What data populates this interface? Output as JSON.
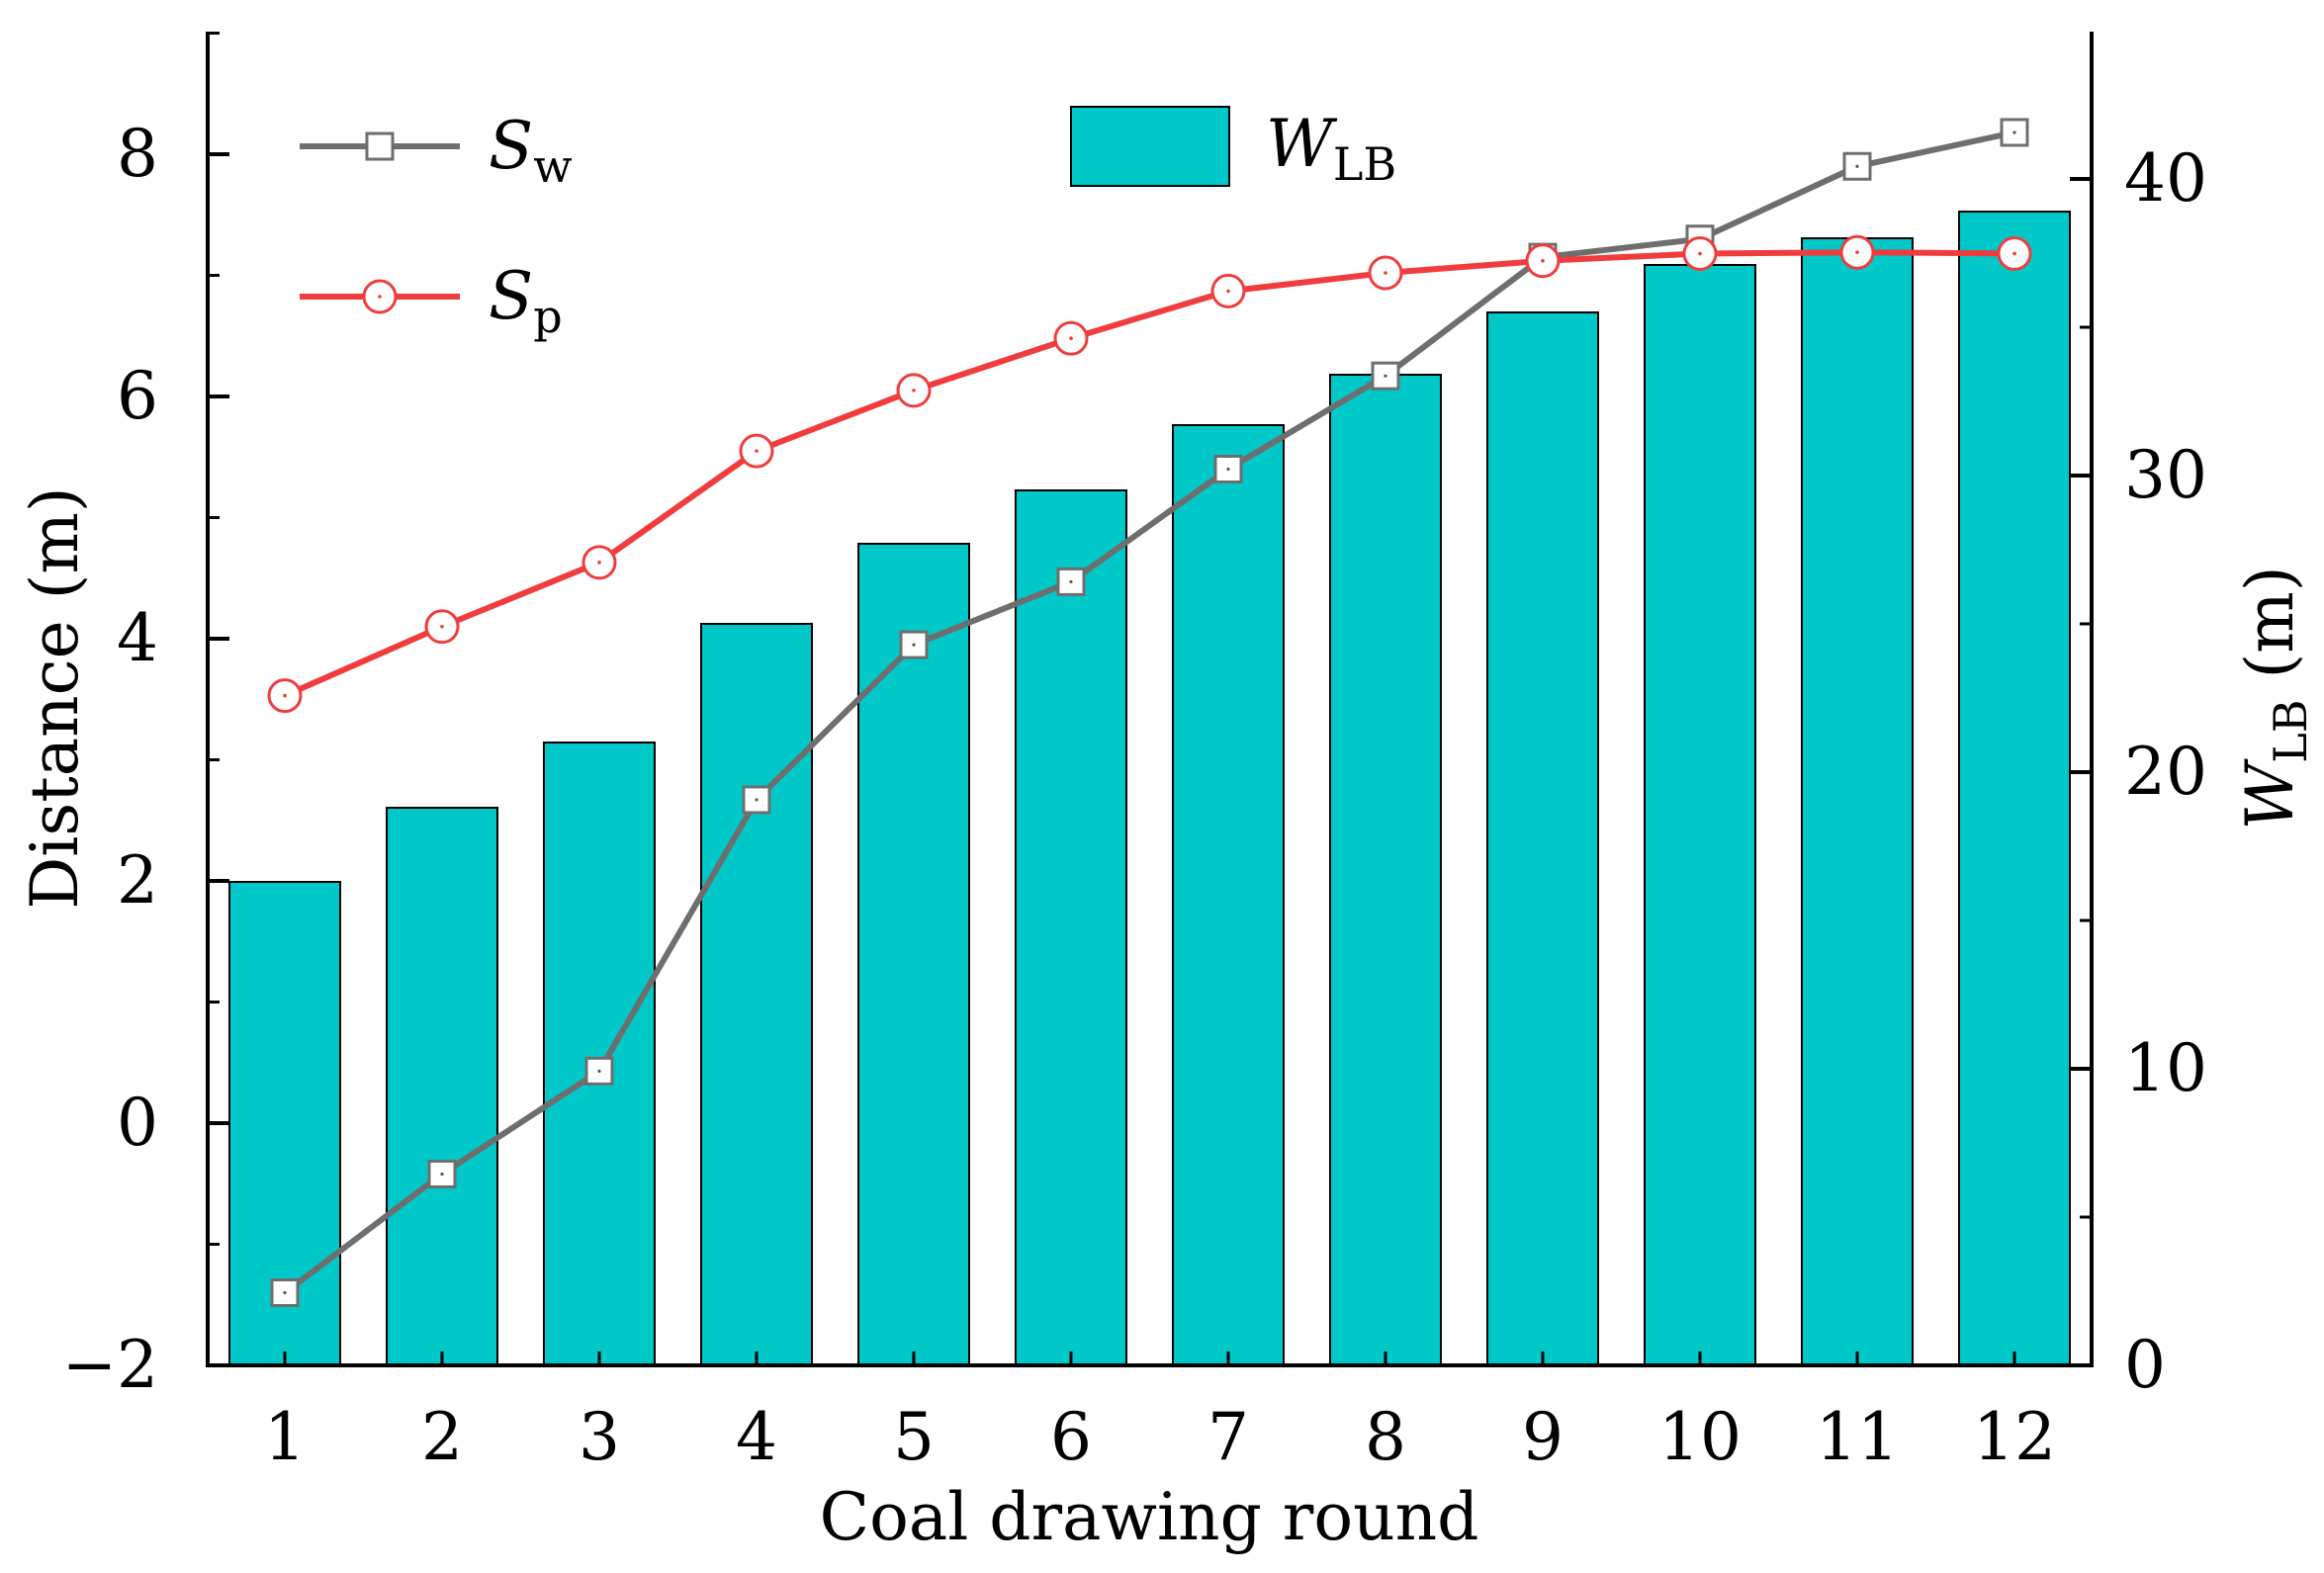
{
  "chart_data": {
    "type": "bar",
    "xlabel": "Coal drawing round",
    "ylabel": "Distance (m)",
    "y2label": {
      "main": "W",
      "sub": "LB",
      "unit": " (m)"
    },
    "categories": [
      "1",
      "2",
      "3",
      "4",
      "5",
      "6",
      "7",
      "8",
      "9",
      "10",
      "11",
      "12"
    ],
    "ylim": [
      -2,
      9
    ],
    "yticks": [
      -2,
      0,
      2,
      4,
      6,
      8
    ],
    "yticks_display": [
      "−2",
      "0",
      "2",
      "4",
      "6",
      "8"
    ],
    "y2lim": [
      0,
      45
    ],
    "y2ticks": [
      0,
      10,
      20,
      30,
      40
    ],
    "bars": {
      "name": "W_LB",
      "axis": "right",
      "color": "#00c8c8",
      "values": [
        16.3,
        18.8,
        21.0,
        25.0,
        27.7,
        29.5,
        31.7,
        33.4,
        35.5,
        37.1,
        38.0,
        38.9
      ]
    },
    "series": [
      {
        "name": "S_w",
        "axis": "left",
        "marker": "square",
        "color": "#6e6e6e",
        "values": [
          -1.4,
          -0.42,
          0.43,
          2.67,
          3.95,
          4.47,
          5.4,
          6.17,
          7.15,
          7.3,
          7.9,
          8.18
        ]
      },
      {
        "name": "S_p",
        "axis": "left",
        "marker": "circle",
        "color": "#f03c3c",
        "values": [
          3.53,
          4.1,
          4.63,
          5.55,
          6.05,
          6.48,
          6.87,
          7.02,
          7.12,
          7.18,
          7.19,
          7.18
        ]
      }
    ],
    "legend": [
      {
        "key": "S_w",
        "main": "S",
        "sub": "w"
      },
      {
        "key": "S_p",
        "main": "S",
        "sub": "p"
      },
      {
        "key": "W_LB",
        "main": "W",
        "sub": "LB"
      }
    ]
  }
}
